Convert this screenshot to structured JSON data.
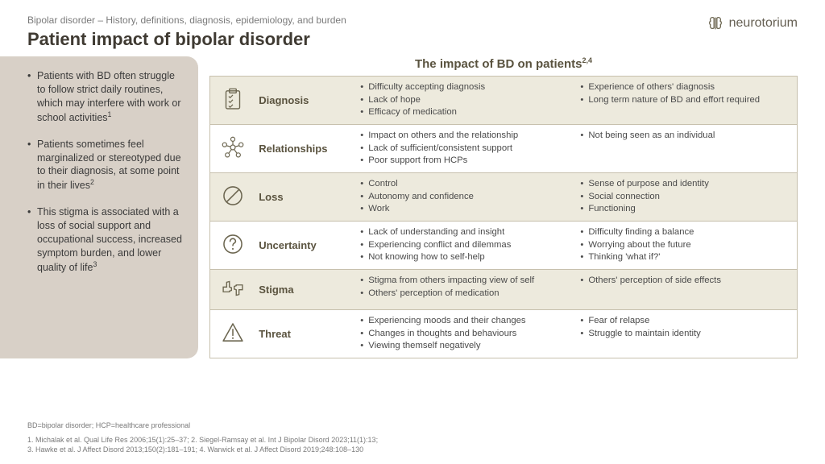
{
  "brand": "neurotorium",
  "topline": "Bipolar disorder – History, definitions, diagnosis, epidemiology, and burden",
  "title": "Patient impact of bipolar disorder",
  "sidebar_bullets": [
    "Patients with BD often struggle to follow strict daily routines, which may interfere with work or school activities",
    "Patients sometimes feel marginalized or stereotyped due to their diagnosis, at some point in their lives",
    "This stigma is associated with a loss of social support and occupational success, increased symptom burden, and lower quality of life"
  ],
  "sidebar_sups": [
    "1",
    "2",
    "3"
  ],
  "table_title": "The impact of BD on patients",
  "table_title_sup": "2,4",
  "rows": [
    {
      "label": "Diagnosis",
      "shade": true,
      "col1": [
        "Difficulty accepting diagnosis",
        "Lack of hope",
        "Efficacy of medication"
      ],
      "col2": [
        "Experience of others' diagnosis",
        "Long term nature of BD and effort required"
      ]
    },
    {
      "label": "Relationships",
      "shade": false,
      "col1": [
        "Impact on others and the relationship",
        "Lack of sufficient/consistent support",
        "Poor support from HCPs"
      ],
      "col2": [
        "Not being seen as an individual"
      ]
    },
    {
      "label": "Loss",
      "shade": true,
      "col1": [
        "Control",
        "Autonomy and confidence",
        "Work"
      ],
      "col2": [
        "Sense of purpose and identity",
        "Social connection",
        "Functioning"
      ]
    },
    {
      "label": "Uncertainty",
      "shade": false,
      "col1": [
        "Lack of understanding and insight",
        "Experiencing conflict and dilemmas",
        "Not knowing how to self-help"
      ],
      "col2": [
        "Difficulty finding a balance",
        "Worrying about the future",
        "Thinking 'what if?'"
      ]
    },
    {
      "label": "Stigma",
      "shade": true,
      "col1": [
        "Stigma from others impacting view of self",
        "Others' perception of medication"
      ],
      "col2": [
        "Others' perception of side effects"
      ]
    },
    {
      "label": "Threat",
      "shade": false,
      "col1": [
        "Experiencing moods and their changes",
        "Changes in thoughts and behaviours",
        "Viewing themself negatively"
      ],
      "col2": [
        "Fear of relapse",
        "Struggle to maintain identity"
      ]
    }
  ],
  "abbr": "BD=bipolar disorder; HCP=healthcare professional",
  "refs_line1": "1. Michalak et al. Qual Life Res 2006;15(1):25–37;  2. Siegel-Ramsay et al. Int J Bipolar Disord 2023;11(1):13;",
  "refs_line2": "3. Hawke et al. J Affect Disord 2013;150(2):181–191;  4. Warwick et al. J Affect Disord 2019;248:108–130",
  "colors": {
    "sidebar_bg": "#d8d0c7",
    "row_shade": "#edeadd",
    "border": "#c7c0ad",
    "title": "#3f3a32",
    "label": "#5a533f",
    "icon": "#6b654f"
  }
}
